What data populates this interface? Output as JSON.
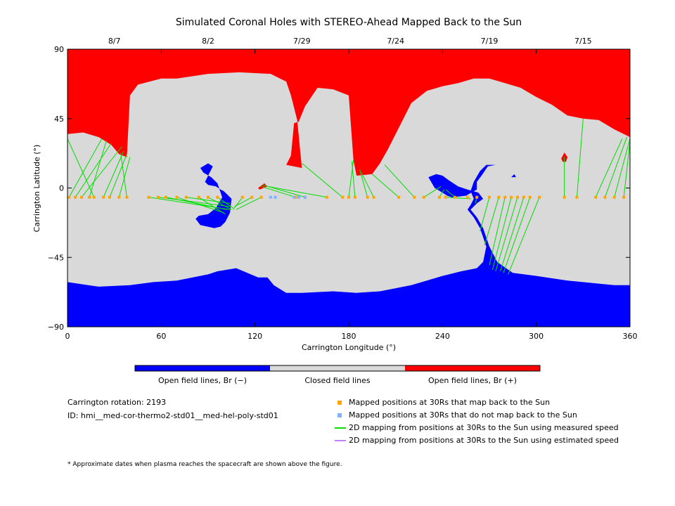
{
  "chart_data": {
    "type": "map",
    "title": "Simulated Coronal Holes with STEREO-Ahead Mapped Back to the Sun",
    "xlabel": "Carrington Longitude (°)",
    "ylabel": "Carrington Latitude (°)",
    "xlim": [
      0,
      360
    ],
    "ylim": [
      -90,
      90
    ],
    "x_ticks": [
      "0",
      "60",
      "120",
      "180",
      "240",
      "300",
      "360"
    ],
    "y_ticks": [
      "90",
      "45",
      "0",
      "−45",
      "−90"
    ],
    "top_axis_dates": [
      {
        "label": "8/7",
        "lon": 30
      },
      {
        "label": "8/2",
        "lon": 90
      },
      {
        "label": "7/29",
        "lon": 150
      },
      {
        "label": "7/24",
        "lon": 210
      },
      {
        "label": "7/19",
        "lon": 270
      },
      {
        "label": "7/15",
        "lon": 330
      }
    ],
    "colors": {
      "open_negative": "#0000ff",
      "closed": "#d9d9d9",
      "open_positive": "#ff0000",
      "mapped_back": "#ffa500",
      "not_mapped": "#7fb2ff",
      "measured": "#00dd00",
      "estimated": "#bf7fff"
    },
    "regions": {
      "north_positive": [
        [
          0,
          90
        ],
        [
          360,
          90
        ],
        [
          360,
          33
        ],
        [
          350,
          38
        ],
        [
          340,
          44
        ],
        [
          330,
          45
        ],
        [
          320,
          47
        ],
        [
          310,
          54
        ],
        [
          300,
          59
        ],
        [
          290,
          65
        ],
        [
          280,
          68
        ],
        [
          270,
          71
        ],
        [
          260,
          71
        ],
        [
          250,
          68
        ],
        [
          240,
          66
        ],
        [
          230,
          63
        ],
        [
          220,
          55
        ],
        [
          210,
          35
        ],
        [
          205,
          25
        ],
        [
          200,
          16
        ],
        [
          195,
          9
        ],
        [
          185,
          8
        ],
        [
          183,
          18
        ],
        [
          180,
          60
        ],
        [
          170,
          64
        ],
        [
          160,
          65
        ],
        [
          152,
          53
        ],
        [
          148,
          43
        ],
        [
          145,
          42
        ],
        [
          143,
          21
        ],
        [
          140,
          15
        ],
        [
          150,
          13
        ],
        [
          147,
          44
        ],
        [
          143,
          60
        ],
        [
          140,
          69
        ],
        [
          130,
          74
        ],
        [
          110,
          75
        ],
        [
          90,
          74
        ],
        [
          70,
          71
        ],
        [
          60,
          71
        ],
        [
          45,
          67
        ],
        [
          40,
          60
        ],
        [
          38,
          20
        ],
        [
          33,
          22
        ],
        [
          28,
          28
        ],
        [
          20,
          33
        ],
        [
          10,
          36
        ],
        [
          0,
          35
        ]
      ],
      "positive_spot_a": [
        [
          126,
          3
        ],
        [
          122,
          0
        ],
        [
          123,
          -1
        ],
        [
          128,
          1
        ]
      ],
      "positive_spot_b": [
        [
          318,
          23
        ],
        [
          316,
          19
        ],
        [
          317,
          17
        ],
        [
          319,
          17
        ],
        [
          320,
          20
        ]
      ],
      "south_negative": [
        [
          0,
          -90
        ],
        [
          360,
          -90
        ],
        [
          360,
          -63
        ],
        [
          350,
          -63
        ],
        [
          340,
          -62
        ],
        [
          330,
          -61
        ],
        [
          320,
          -60
        ],
        [
          300,
          -57
        ],
        [
          285,
          -55
        ],
        [
          275,
          -48
        ],
        [
          270,
          -38
        ],
        [
          266,
          -48
        ],
        [
          262,
          -52
        ],
        [
          252,
          -54
        ],
        [
          240,
          -57
        ],
        [
          230,
          -60
        ],
        [
          220,
          -63
        ],
        [
          210,
          -65
        ],
        [
          200,
          -67
        ],
        [
          185,
          -68
        ],
        [
          170,
          -67
        ],
        [
          150,
          -68
        ],
        [
          140,
          -68
        ],
        [
          132,
          -63
        ],
        [
          128,
          -58
        ],
        [
          122,
          -58
        ],
        [
          108,
          -52
        ],
        [
          96,
          -54
        ],
        [
          90,
          -56
        ],
        [
          70,
          -60
        ],
        [
          55,
          -61
        ],
        [
          40,
          -63
        ],
        [
          20,
          -64
        ],
        [
          0,
          -61
        ]
      ],
      "hole_a": [
        [
          93,
          14
        ],
        [
          90,
          8
        ],
        [
          88,
          4
        ],
        [
          90,
          2
        ],
        [
          95,
          1
        ],
        [
          98,
          -1
        ],
        [
          100,
          -2
        ],
        [
          102,
          -4
        ],
        [
          105,
          -7
        ],
        [
          104,
          -16
        ],
        [
          101,
          -22
        ],
        [
          98,
          -25
        ],
        [
          94,
          -26
        ],
        [
          85,
          -24
        ],
        [
          82,
          -20
        ],
        [
          84,
          -18
        ],
        [
          90,
          -17
        ],
        [
          95,
          -13
        ],
        [
          99,
          -6
        ],
        [
          96,
          3
        ],
        [
          92,
          7
        ],
        [
          87,
          10
        ],
        [
          85,
          13
        ],
        [
          90,
          16
        ]
      ],
      "hole_b_arm": [
        [
          236,
          9
        ],
        [
          231,
          7
        ],
        [
          235,
          0
        ],
        [
          240,
          -3
        ],
        [
          243,
          -5
        ],
        [
          246,
          -6
        ],
        [
          255,
          -5
        ],
        [
          262,
          -1
        ],
        [
          262,
          4
        ],
        [
          265,
          8
        ],
        [
          269,
          14
        ],
        [
          274,
          15
        ],
        [
          268,
          15
        ],
        [
          264,
          11
        ],
        [
          260,
          4
        ],
        [
          258,
          -2
        ],
        [
          260,
          -7
        ],
        [
          258,
          -11
        ],
        [
          256,
          -14
        ],
        [
          260,
          -19
        ],
        [
          264,
          -26
        ],
        [
          268,
          -38
        ],
        [
          266,
          -48
        ],
        [
          264,
          -52
        ],
        [
          270,
          -60
        ],
        [
          275,
          -48
        ],
        [
          270,
          -38
        ],
        [
          266,
          -26
        ],
        [
          262,
          -19
        ],
        [
          258,
          -14
        ],
        [
          262,
          -10
        ],
        [
          266,
          -7
        ],
        [
          263,
          -3
        ],
        [
          256,
          -1
        ],
        [
          250,
          1
        ],
        [
          244,
          5
        ],
        [
          240,
          8
        ]
      ],
      "hole_c": [
        [
          286,
          9
        ],
        [
          284,
          7
        ],
        [
          287,
          7
        ]
      ]
    },
    "mapping_lines": [
      {
        "from": [
          1,
          -6
        ],
        "to": [
          22,
          32
        ]
      },
      {
        "from": [
          5,
          -6
        ],
        "to": [
          28,
          29
        ]
      },
      {
        "from": [
          9,
          -6
        ],
        "to": [
          35,
          27
        ]
      },
      {
        "from": [
          14,
          -6
        ],
        "to": [
          25,
          31
        ]
      },
      {
        "from": [
          17,
          -6
        ],
        "to": [
          0,
          32
        ]
      },
      {
        "from": [
          23,
          -6
        ],
        "to": [
          36,
          24
        ]
      },
      {
        "from": [
          27,
          -6
        ],
        "to": [
          38,
          22
        ]
      },
      {
        "from": [
          33,
          -6
        ],
        "to": [
          40,
          20
        ]
      },
      {
        "from": [
          38,
          -6
        ],
        "to": [
          34,
          23
        ]
      },
      {
        "from": [
          52,
          -6
        ],
        "to": [
          104,
          -14
        ]
      },
      {
        "from": [
          58,
          -6
        ],
        "to": [
          104,
          -12
        ]
      },
      {
        "from": [
          63,
          -6
        ],
        "to": [
          102,
          -14
        ]
      },
      {
        "from": [
          70,
          -6
        ],
        "to": [
          100,
          -16
        ]
      },
      {
        "from": [
          76,
          -6
        ],
        "to": [
          104,
          -10
        ]
      },
      {
        "from": [
          84,
          -6
        ],
        "to": [
          101,
          -17
        ]
      },
      {
        "from": [
          90,
          -6
        ],
        "to": [
          105,
          -14
        ]
      },
      {
        "from": [
          96,
          -6
        ],
        "to": [
          106,
          -13
        ]
      },
      {
        "from": [
          112,
          -6
        ],
        "to": [
          106,
          -14
        ]
      },
      {
        "from": [
          118,
          -6
        ],
        "to": [
          107,
          -12
        ]
      },
      {
        "from": [
          124,
          -6
        ],
        "to": [
          108,
          -14
        ]
      },
      {
        "from": [
          146,
          -6
        ],
        "to": [
          124,
          1
        ]
      },
      {
        "from": [
          152,
          -6
        ],
        "to": [
          125,
          2
        ]
      },
      {
        "from": [
          166,
          -6
        ],
        "to": [
          128,
          1
        ]
      },
      {
        "from": [
          176,
          -6
        ],
        "to": [
          150,
          16
        ]
      },
      {
        "from": [
          180,
          -6
        ],
        "to": [
          183,
          18
        ]
      },
      {
        "from": [
          184,
          -6
        ],
        "to": [
          182,
          17
        ]
      },
      {
        "from": [
          192,
          -6
        ],
        "to": [
          187,
          12
        ]
      },
      {
        "from": [
          196,
          -6
        ],
        "to": [
          188,
          10
        ]
      },
      {
        "from": [
          212,
          -6
        ],
        "to": [
          195,
          9
        ]
      },
      {
        "from": [
          222,
          -6
        ],
        "to": [
          203,
          15
        ]
      },
      {
        "from": [
          228,
          -6
        ],
        "to": [
          239,
          1
        ]
      },
      {
        "from": [
          238,
          -6
        ],
        "to": [
          241,
          -1
        ]
      },
      {
        "from": [
          242,
          -6
        ],
        "to": [
          258,
          -7
        ]
      },
      {
        "from": [
          248,
          -6
        ],
        "to": [
          242,
          -1
        ]
      },
      {
        "from": [
          256,
          -6
        ],
        "to": [
          256,
          -5
        ]
      },
      {
        "from": [
          262,
          -6
        ],
        "to": [
          261,
          -10
        ]
      },
      {
        "from": [
          270,
          -6
        ],
        "to": [
          264,
          -28
        ]
      },
      {
        "from": [
          276,
          -6
        ],
        "to": [
          267,
          -37
        ]
      },
      {
        "from": [
          280,
          -6
        ],
        "to": [
          270,
          -50
        ]
      },
      {
        "from": [
          284,
          -6
        ],
        "to": [
          272,
          -53
        ]
      },
      {
        "from": [
          288,
          -6
        ],
        "to": [
          274,
          -54
        ]
      },
      {
        "from": [
          292,
          -6
        ],
        "to": [
          277,
          -54
        ]
      },
      {
        "from": [
          296,
          -6
        ],
        "to": [
          279,
          -55
        ]
      },
      {
        "from": [
          302,
          -6
        ],
        "to": [
          282,
          -56
        ]
      },
      {
        "from": [
          318,
          -6
        ],
        "to": [
          318,
          20
        ]
      },
      {
        "from": [
          326,
          -6
        ],
        "to": [
          330,
          45
        ]
      },
      {
        "from": [
          338,
          -6
        ],
        "to": [
          355,
          32
        ]
      },
      {
        "from": [
          344,
          -6
        ],
        "to": [
          358,
          33
        ]
      },
      {
        "from": [
          350,
          -6
        ],
        "to": [
          360,
          32
        ]
      },
      {
        "from": [
          356,
          -6
        ],
        "to": [
          360,
          30
        ]
      }
    ],
    "mapped_back_lons": [
      1,
      5,
      9,
      14,
      17,
      23,
      27,
      33,
      38,
      52,
      58,
      63,
      70,
      76,
      84,
      90,
      96,
      112,
      118,
      124,
      146,
      152,
      166,
      176,
      180,
      184,
      192,
      196,
      212,
      222,
      228,
      238,
      242,
      248,
      256,
      262,
      270,
      276,
      280,
      284,
      288,
      292,
      296,
      302,
      318,
      326,
      338,
      344,
      350,
      356
    ],
    "not_mapped_lons": [
      130,
      133,
      145,
      148,
      152
    ],
    "mapping_latitude": -6
  },
  "colorbar": {
    "labels": [
      "Open field lines, Br (−)",
      "Closed field lines",
      "Open field lines, Br (+)"
    ]
  },
  "info": {
    "rotation": "Carrington rotation: 2193",
    "id": "ID: hmi__med-cor-thermo2-std01__med-hel-poly-std01"
  },
  "legend": [
    {
      "text": "Mapped positions at 30Rs that map back to the Sun",
      "kind": "square",
      "color": "#ffa500"
    },
    {
      "text": "Mapped positions at 30Rs that do not map back to the Sun",
      "kind": "square",
      "color": "#7fb2ff"
    },
    {
      "text": "2D mapping from positions at 30Rs to the Sun using measured speed",
      "kind": "line",
      "color": "#00dd00"
    },
    {
      "text": "2D mapping from positions at 30Rs to the Sun using estimated speed",
      "kind": "line",
      "color": "#bf7fff"
    }
  ],
  "footnote": "* Approximate dates when plasma reaches the spacecraft are shown above the figure."
}
